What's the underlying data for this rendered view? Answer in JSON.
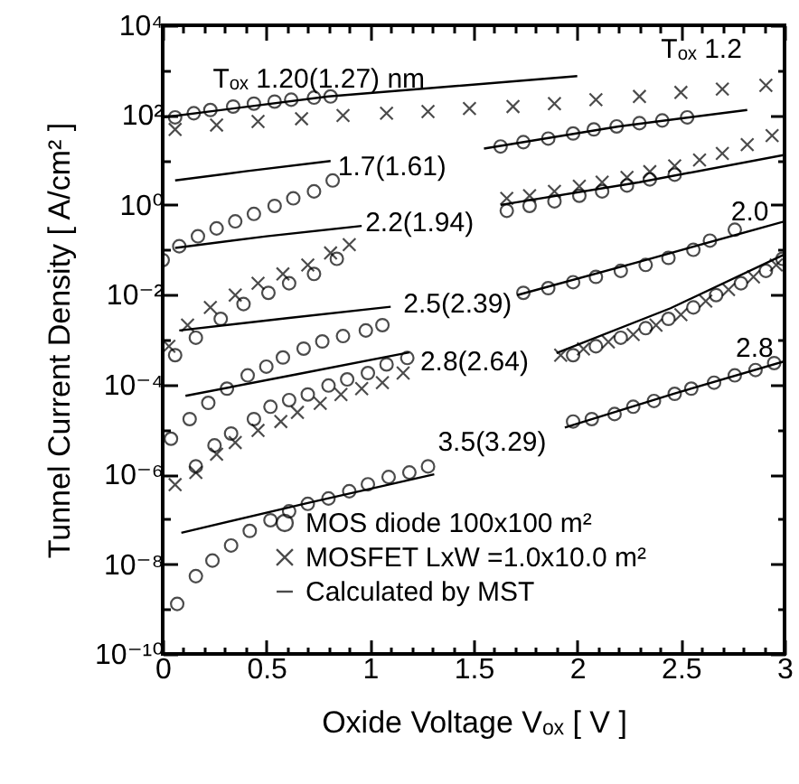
{
  "chart_data": {
    "type": "line",
    "xlabel": "Oxide Voltage Vₒₓ [ V ]",
    "ylabel": "Tunnel Current Density [ A/cm² ]",
    "log": "y",
    "legend": "bottom left",
    "xlim": [
      0,
      3
    ],
    "ylim": [
      1e-10,
      10000
    ],
    "xticks": [
      0,
      {
        "value": 0.1,
        "label": null
      },
      {
        "value": 0.2,
        "label": null
      },
      {
        "value": 0.3,
        "label": null
      },
      {
        "value": 0.4,
        "label": null
      },
      0.5,
      {
        "value": 0.6,
        "label": null
      },
      {
        "value": 0.7,
        "label": null
      },
      {
        "value": 0.8,
        "label": null
      },
      {
        "value": 0.9,
        "label": null
      },
      1,
      {
        "value": 1.1,
        "label": null
      },
      {
        "value": 1.2,
        "label": null
      },
      {
        "value": 1.3,
        "label": null
      },
      {
        "value": 1.4,
        "label": null
      },
      1.5,
      {
        "value": 1.6,
        "label": null
      },
      {
        "value": 1.7,
        "label": null
      },
      {
        "value": 1.8,
        "label": null
      },
      {
        "value": 1.9,
        "label": null
      },
      2,
      {
        "value": 2.1,
        "label": null
      },
      {
        "value": 2.2,
        "label": null
      },
      {
        "value": 2.3,
        "label": null
      },
      {
        "value": 2.4,
        "label": null
      },
      2.5,
      {
        "value": 2.6,
        "label": null
      },
      {
        "value": 2.7,
        "label": null
      },
      {
        "value": 2.8,
        "label": null
      },
      {
        "value": 2.9,
        "label": null
      },
      3
    ],
    "yticks": [
      {
        "value": 1e-10,
        "label": "10⁻¹⁰"
      },
      {
        "value": 1e-09,
        "label": null
      },
      {
        "value": 1e-08,
        "label": "10⁻⁸"
      },
      {
        "value": 1e-07,
        "label": null
      },
      {
        "value": 1e-06,
        "label": "10⁻⁶"
      },
      {
        "value": 1e-05,
        "label": null
      },
      {
        "value": 0.0001,
        "label": "10⁻⁴"
      },
      {
        "value": 0.001,
        "label": null
      },
      {
        "value": 0.01,
        "label": "10⁻²"
      },
      {
        "value": 0.1,
        "label": null
      },
      {
        "value": 1,
        "label": "10⁰"
      },
      {
        "value": 10,
        "label": null
      },
      {
        "value": 100,
        "label": "10²"
      },
      {
        "value": 1000,
        "label": null
      },
      {
        "value": 10000,
        "label": "10⁴"
      }
    ],
    "series": [
      {
        "name": "MOS diode 100x100   m²",
        "type": "scatter",
        "marker": "circle",
        "color": "#000000",
        "x": [
          0.06,
          0.15,
          0.23,
          0.34,
          0.44,
          0.54,
          0.62,
          0.73,
          0.81,
          0,
          0.08,
          0.17,
          0.26,
          0.35,
          0.44,
          0.54,
          0.63,
          0.73,
          0.82,
          1.63,
          1.74,
          1.86,
          1.98,
          2.08,
          2.19,
          2.3,
          2.41,
          2.53,
          0.06,
          0.16,
          0.28,
          0.39,
          0.51,
          0.61,
          0.73,
          0.84,
          1.66,
          1.77,
          1.89,
          2.01,
          2.12,
          2.24,
          2.35,
          2.47,
          0.04,
          0.13,
          0.22,
          0.31,
          0.41,
          0.5,
          0.58,
          0.68,
          0.77,
          0.87,
          0.98,
          1.06,
          1.74,
          1.86,
          1.98,
          2.09,
          2.21,
          2.33,
          2.44,
          2.56,
          2.64,
          2.76,
          0.16,
          0.25,
          0.33,
          0.44,
          0.52,
          0.61,
          0.7,
          0.8,
          0.89,
          0.99,
          1.08,
          1.18,
          1.98,
          2.09,
          2.21,
          2.33,
          2.44,
          2.56,
          2.67,
          2.79,
          2.91,
          2.99,
          0.07,
          0.16,
          0.24,
          0.33,
          0.42,
          0.52,
          0.61,
          0.7,
          0.8,
          0.9,
          0.99,
          1.09,
          1.19,
          1.28,
          1.98,
          2.07,
          2.18,
          2.27,
          2.37,
          2.47,
          2.55,
          2.66,
          2.76,
          2.86,
          2.95
        ],
        "values": [
          89,
          110,
          130,
          155,
          180,
          200,
          220,
          245,
          260,
          0.059,
          0.12,
          0.2,
          0.3,
          0.43,
          0.63,
          0.95,
          1.4,
          2,
          3.5,
          20,
          25,
          30,
          39,
          48,
          56,
          66,
          76,
          89,
          0.00045,
          0.0011,
          0.0029,
          0.0062,
          0.011,
          0.018,
          0.029,
          0.063,
          0.74,
          0.95,
          1.2,
          1.6,
          2,
          2.7,
          3.7,
          4.7,
          6.2e-06,
          1.7e-05,
          3.9e-05,
          8.1e-05,
          0.00016,
          0.00025,
          0.0004,
          0.00063,
          0.00091,
          0.0012,
          0.0016,
          0.0021,
          0.011,
          0.014,
          0.019,
          0.025,
          0.034,
          0.046,
          0.066,
          0.1,
          0.16,
          0.28,
          1.5e-06,
          4.4e-06,
          8.1e-06,
          1.7e-05,
          3.2e-05,
          4.5e-05,
          6e-05,
          9.5e-05,
          0.00013,
          0.00018,
          0.00028,
          0.00039,
          0.00045,
          0.00071,
          0.0011,
          0.0018,
          0.0029,
          0.0052,
          0.0098,
          0.018,
          0.034,
          0.063,
          1.3e-09,
          5.4e-09,
          1.2e-08,
          2.6e-08,
          5.5e-08,
          9.5e-08,
          1.5e-07,
          2.2e-07,
          2.9e-07,
          4.2e-07,
          6e-07,
          8.7e-07,
          1.1e-06,
          1.5e-06,
          1.5e-05,
          1.7e-05,
          2.2e-05,
          3.2e-05,
          4.3e-05,
          6.2e-05,
          8.1e-05,
          0.00011,
          0.00016,
          0.00021,
          0.0003
        ]
      },
      {
        "name": "MOSFET LxW =1.0x10.0   m²",
        "type": "scatter",
        "marker": "cross",
        "color": "#000000",
        "x": [
          0.06,
          0.26,
          0.46,
          0.67,
          0.87,
          1.08,
          1.28,
          1.48,
          1.69,
          1.89,
          2.09,
          2.3,
          2.5,
          2.7,
          2.91,
          0.03,
          0.12,
          0.23,
          0.35,
          0.46,
          0.58,
          0.7,
          0.81,
          0.9,
          1.66,
          1.77,
          1.89,
          2.01,
          2.12,
          2.24,
          2.35,
          2.47,
          2.59,
          2.7,
          2.82,
          2.94,
          0.06,
          0.16,
          0.26,
          0.35,
          0.46,
          0.57,
          0.65,
          0.76,
          0.86,
          0.96,
          1.06,
          1.16,
          1.92,
          2.03,
          2.15,
          2.27,
          2.38,
          2.5,
          2.62,
          2.73,
          2.85,
          2.96
        ],
        "values": [
          48,
          60,
          72,
          83,
          98,
          110,
          120,
          140,
          155,
          180,
          220,
          260,
          320,
          380,
          460,
          0.00071,
          0.0021,
          0.0052,
          0.0098,
          0.018,
          0.029,
          0.046,
          0.085,
          0.13,
          1.4,
          1.6,
          2,
          2.6,
          3.2,
          4.1,
          5.5,
          7.4,
          10,
          14,
          22,
          35,
          5.9e-07,
          1.1e-06,
          2.8e-06,
          5.1e-06,
          9.5e-06,
          1.5e-05,
          2.4e-05,
          3.8e-05,
          6e-05,
          8.1e-05,
          0.00011,
          0.00018,
          0.00045,
          0.00062,
          0.00089,
          0.0013,
          0.0021,
          0.0036,
          0.0072,
          0.013,
          0.025,
          0.046
        ]
      },
      {
        "name": "Calculated by MST",
        "type": "line",
        "color": "#000000",
        "x": [
          0,
          0.8,
          2
        ],
        "values": [
          89,
          260,
          740
        ]
      },
      {
        "type": "line",
        "color": "#000000",
        "x": [
          0.06,
          0.4,
          0.81
        ],
        "values": [
          3.5,
          5.6,
          9.5
        ]
      },
      {
        "type": "line",
        "color": "#000000",
        "x": [
          1.55,
          2.2,
          2.82
        ],
        "values": [
          18,
          56,
          130
        ]
      },
      {
        "type": "line",
        "color": "#000000",
        "x": [
          0.06,
          0.5,
          0.96
        ],
        "values": [
          0.11,
          0.2,
          0.34
        ]
      },
      {
        "type": "line",
        "color": "#000000",
        "x": [
          1.63,
          2.3,
          3
        ],
        "values": [
          1,
          3.2,
          13
        ]
      },
      {
        "type": "line",
        "color": "#000000",
        "x": [
          0.08,
          0.6,
          1.1
        ],
        "values": [
          0.0016,
          0.003,
          0.0054
        ]
      },
      {
        "type": "line",
        "color": "#000000",
        "x": [
          1.71,
          2.35,
          3
        ],
        "values": [
          0.0098,
          0.063,
          0.43
        ]
      },
      {
        "type": "line",
        "color": "#000000",
        "x": [
          0.11,
          0.65,
          1.19
        ],
        "values": [
          5.6e-05,
          0.00017,
          0.00052
        ]
      },
      {
        "type": "line",
        "color": "#000000",
        "x": [
          1.9,
          2.45,
          3
        ],
        "values": [
          0.0005,
          0.005,
          0.079
        ]
      },
      {
        "type": "line",
        "color": "#000000",
        "x": [
          0.09,
          0.7,
          1.31
        ],
        "values": [
          5e-08,
          2.3e-07,
          1e-06
        ]
      },
      {
        "type": "line",
        "color": "#000000",
        "x": [
          1.94,
          2.47,
          3
        ],
        "values": [
          1.1e-05,
          6.3e-05,
          0.00033
        ]
      }
    ],
    "annotations": [
      {
        "text": "Tₒₓ 1.20(1.27) nm",
        "x": 0.8,
        "y": 260
      },
      {
        "text": "Tₒₓ 1.2",
        "x": 2.91,
        "y": 460
      },
      {
        "text": "1.7(1.61)",
        "x": 0.81,
        "y": 9.5
      },
      {
        "text": "2.2(1.94)",
        "x": 0.96,
        "y": 0.34
      },
      {
        "text": "2.0",
        "x": 2.82,
        "y": 22
      },
      {
        "text": "2.5(2.39)",
        "x": 1.1,
        "y": 0.0054
      },
      {
        "text": "2.8(2.64)",
        "x": 1.19,
        "y": 0.00052
      },
      {
        "text": "2.8",
        "x": 2.73,
        "y": 0.013
      },
      {
        "text": "3.5(3.29)",
        "x": 1.31,
        "y": 1e-06
      }
    ]
  }
}
